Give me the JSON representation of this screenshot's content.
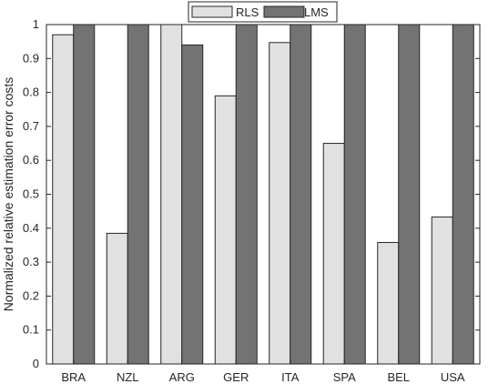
{
  "chart_data": {
    "type": "bar",
    "categories": [
      "BRA",
      "NZL",
      "ARG",
      "GER",
      "ITA",
      "SPA",
      "BEL",
      "USA"
    ],
    "series": [
      {
        "name": "RLS",
        "color": "#e1e1e1",
        "values": [
          0.97,
          0.385,
          1.0,
          0.79,
          0.947,
          0.65,
          0.358,
          0.433
        ]
      },
      {
        "name": "LMS",
        "color": "#737373",
        "values": [
          1.0,
          1.0,
          0.94,
          1.0,
          1.0,
          1.0,
          1.0,
          1.0
        ]
      }
    ],
    "title": "",
    "xlabel": "",
    "ylabel": "Normalized relative estimation error costs",
    "ylim": [
      0,
      1
    ],
    "yticks": [
      0,
      0.1,
      0.2,
      0.3,
      0.4,
      0.5,
      0.6,
      0.7,
      0.8,
      0.9,
      1
    ],
    "ytick_labels": [
      "0",
      "0.1",
      "0.2",
      "0.3",
      "0.4",
      "0.5",
      "0.6",
      "0.7",
      "0.8",
      "0.9",
      "1"
    ],
    "grid": false,
    "legend_position": "top-center"
  }
}
